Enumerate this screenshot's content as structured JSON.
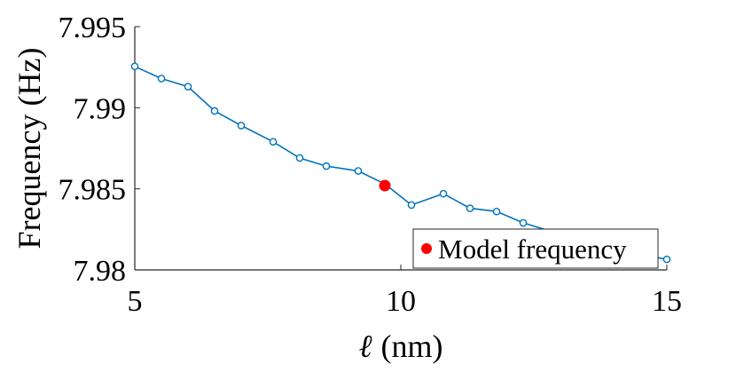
{
  "chart_data": {
    "type": "line",
    "xlabel_symbol": "ℓ",
    "xlabel_unit": "(nm)",
    "ylabel": "Frequency (Hz)",
    "xlim": [
      5,
      15
    ],
    "ylim": [
      7.98,
      7.995
    ],
    "xticks": [
      "5",
      "10",
      "15"
    ],
    "yticks": [
      "7.98",
      "7.985",
      "7.99",
      "7.995"
    ],
    "grid": false,
    "legend_position": "bottom-right",
    "series": [
      {
        "color": "#0072BD",
        "marker": "open-circle",
        "x": [
          5.0,
          5.5,
          6.0,
          6.5,
          7.0,
          7.6,
          8.1,
          8.6,
          9.2,
          9.7,
          10.2,
          10.8,
          11.3,
          11.8,
          12.3,
          12.9,
          13.4,
          13.9,
          14.4,
          15.0
        ],
        "y": [
          7.99255,
          7.9918,
          7.9913,
          7.9898,
          7.9889,
          7.9879,
          7.9869,
          7.9864,
          7.9861,
          7.9853,
          7.984,
          7.9847,
          7.9838,
          7.9836,
          7.9829,
          7.9823,
          7.9818,
          7.9813,
          7.981,
          7.98065
        ]
      }
    ],
    "highlight": {
      "name": "Model frequency",
      "x": 9.7,
      "y": 7.9852,
      "color": "#FF0000"
    }
  }
}
